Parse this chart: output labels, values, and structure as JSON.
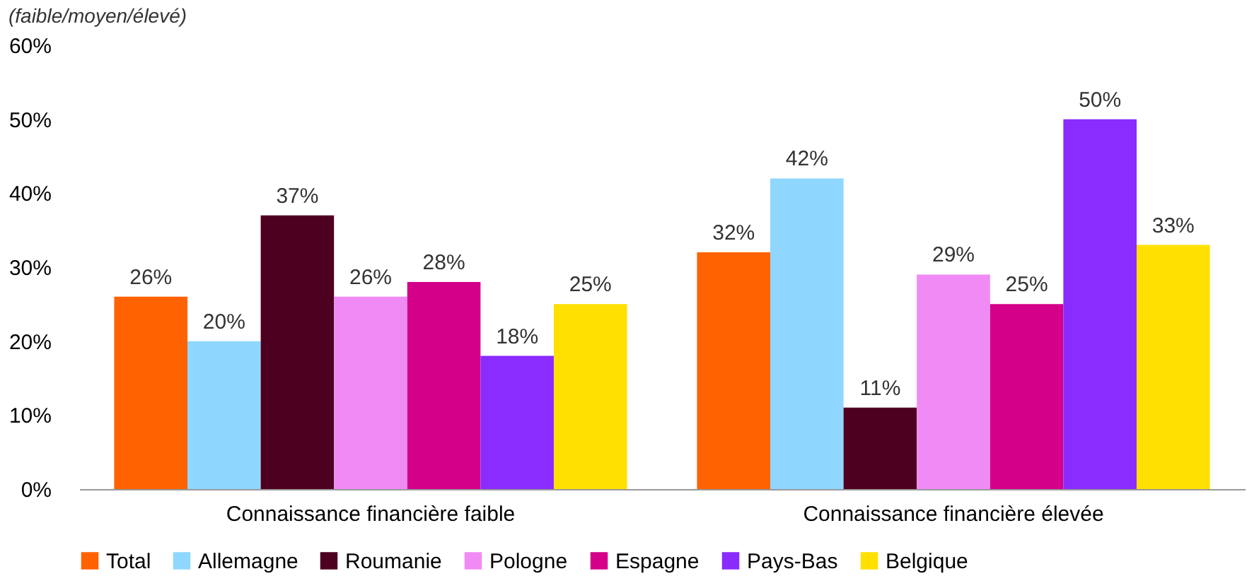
{
  "chart_data": {
    "type": "bar",
    "subtitle": "(faible/moyen/élevé)",
    "categories": [
      "Connaissance financière faible",
      "Connaissance financière élevée"
    ],
    "series": [
      {
        "name": "Total",
        "color": "#ff6200",
        "values": [
          26,
          32
        ],
        "value_labels": [
          "26%",
          "32%"
        ]
      },
      {
        "name": "Allemagne",
        "color": "#8fd7ff",
        "values": [
          20,
          42
        ],
        "value_labels": [
          "20%",
          "42%"
        ]
      },
      {
        "name": "Roumanie",
        "color": "#4d0020",
        "values": [
          37,
          11
        ],
        "value_labels": [
          "37%",
          "11%"
        ]
      },
      {
        "name": "Pologne",
        "color": "#f08bf5",
        "values": [
          26,
          29
        ],
        "value_labels": [
          "26%",
          "29%"
        ]
      },
      {
        "name": "Espagne",
        "color": "#d4008a",
        "values": [
          28,
          25
        ],
        "value_labels": [
          "28%",
          "25%"
        ]
      },
      {
        "name": "Pays-Bas",
        "color": "#8a2bff",
        "values": [
          18,
          50
        ],
        "value_labels": [
          "18%",
          "50%"
        ]
      },
      {
        "name": "Belgique",
        "color": "#ffe000",
        "values": [
          25,
          33
        ],
        "value_labels": [
          "25%",
          "33%"
        ]
      }
    ],
    "ylim": [
      0,
      60
    ],
    "yticks": [
      {
        "value": 0,
        "label": "0%"
      },
      {
        "value": 10,
        "label": "10%"
      },
      {
        "value": 20,
        "label": "20%"
      },
      {
        "value": 30,
        "label": "30%"
      },
      {
        "value": 40,
        "label": "40%"
      },
      {
        "value": 50,
        "label": "50%"
      },
      {
        "value": 60,
        "label": "60%"
      }
    ],
    "grid": false,
    "legend": "bottom"
  }
}
